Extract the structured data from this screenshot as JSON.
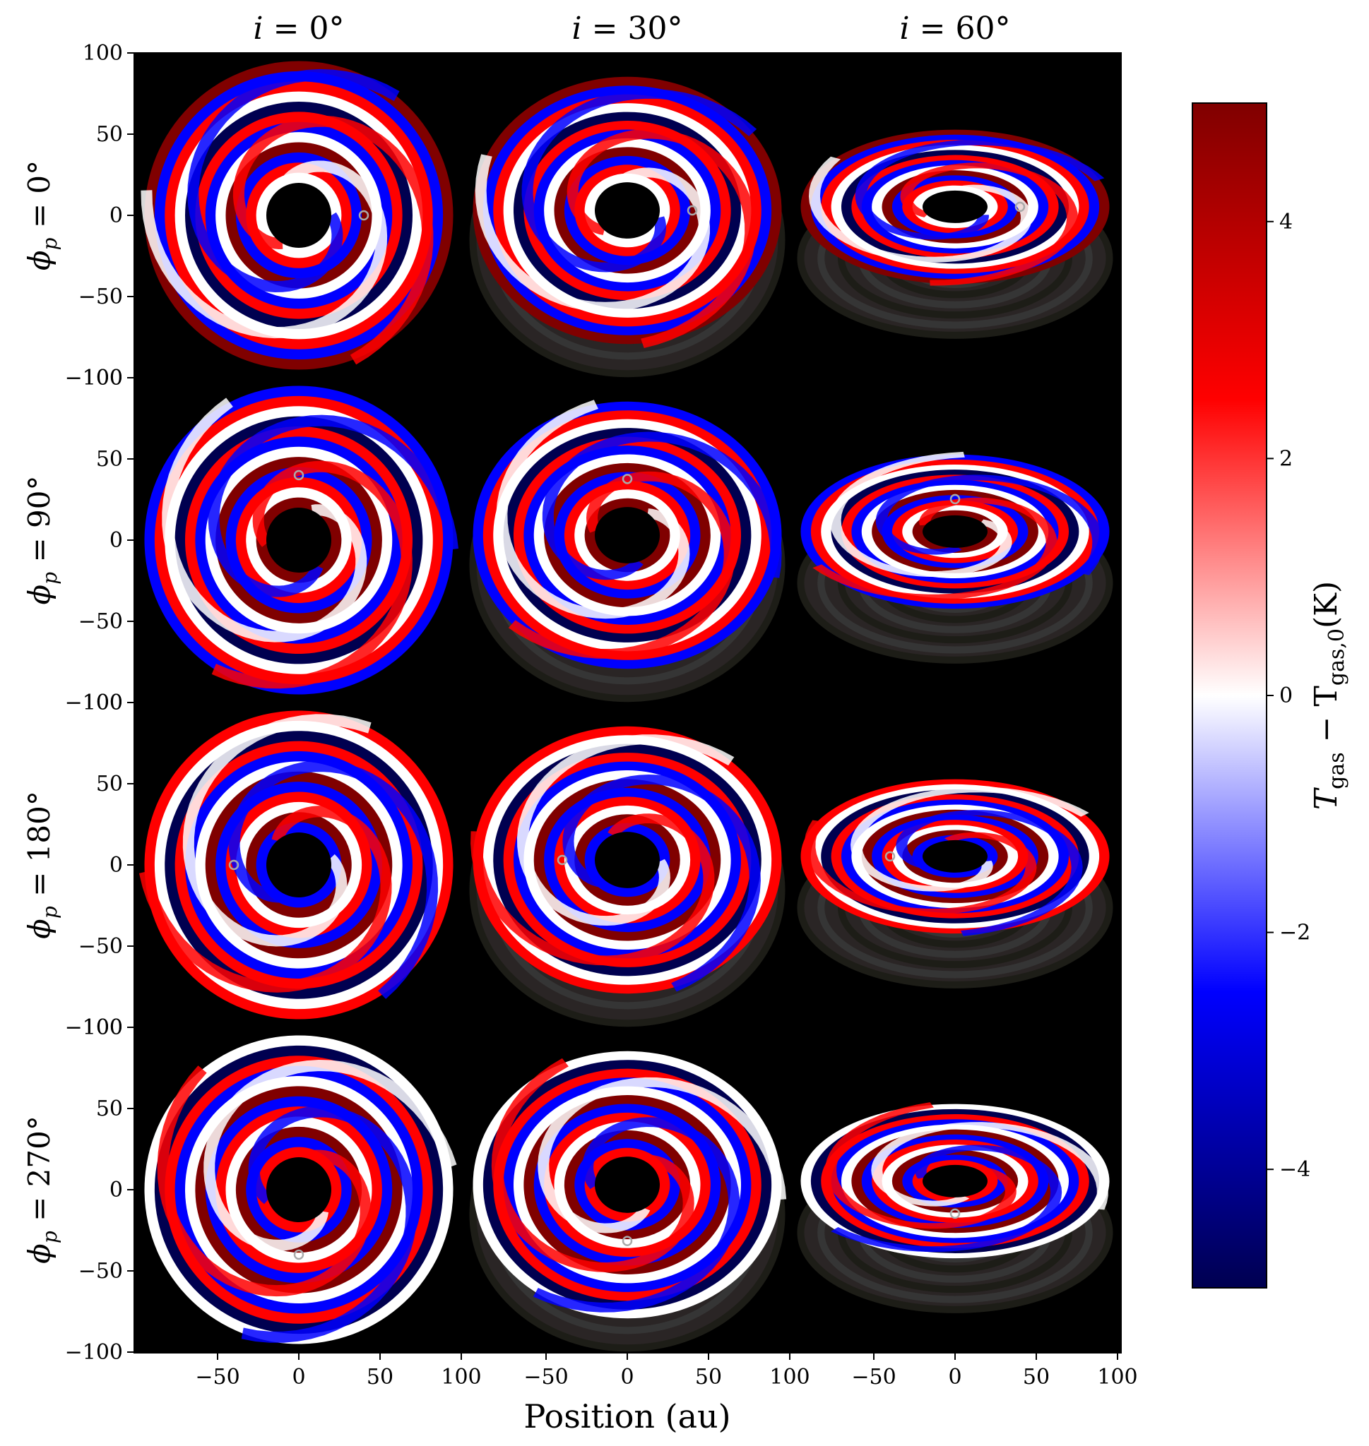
{
  "chart_data": {
    "type": "heatmap",
    "title": "",
    "columns": [
      {
        "label_i": "i",
        "label_value": " = 0°",
        "inclination_deg": 0
      },
      {
        "label_i": "i",
        "label_value": " = 30°",
        "inclination_deg": 30
      },
      {
        "label_i": "i",
        "label_value": " = 60°",
        "inclination_deg": 60
      }
    ],
    "rows": [
      {
        "label": "ϕ",
        "sub": "p",
        "value": " = 0°",
        "planet_phase_deg": 0
      },
      {
        "label": "ϕ",
        "sub": "p",
        "value": " = 90°",
        "planet_phase_deg": 90
      },
      {
        "label": "ϕ",
        "sub": "p",
        "value": " = 180°",
        "planet_phase_deg": 180
      },
      {
        "label": "ϕ",
        "sub": "p",
        "value": " = 270°",
        "planet_phase_deg": 270
      }
    ],
    "xlabel": "Position (au)",
    "x_ticks": [
      -50,
      0,
      50,
      100
    ],
    "y_ticks": [
      100,
      50,
      0,
      -50,
      -100
    ],
    "panel_range_au": [
      -100,
      100
    ],
    "disk_outer_radius_au": 95,
    "disk_inner_radius_au": 20,
    "planet_orbit_radius_au": 40,
    "colorbar": {
      "label_main": "T",
      "label_sub1": "gas",
      "label_mid": " − T",
      "label_sub2": "gas,0",
      "label_unit": "(K)",
      "ticks": [
        4,
        2,
        0,
        -2,
        -4
      ],
      "range": [
        -5,
        5
      ],
      "colormap": "seismic"
    },
    "colors": {
      "background": "#000000",
      "hot": "#800000",
      "warm": "#ff0000",
      "neutral": "#ffffff",
      "cool": "#0000ff",
      "cold": "#000050"
    }
  }
}
